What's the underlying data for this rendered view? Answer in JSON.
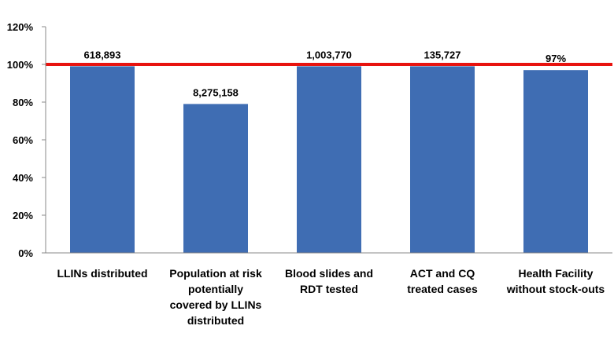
{
  "chart_data": {
    "type": "bar",
    "categories": [
      [
        "LLINs distributed"
      ],
      [
        "Population at risk",
        "potentially",
        "covered by LLINs",
        "distributed"
      ],
      [
        "Blood slides and",
        "RDT tested"
      ],
      [
        "ACT and CQ",
        "treated cases"
      ],
      [
        "Health Facility",
        "without stock-outs"
      ]
    ],
    "values": [
      99,
      79,
      99,
      99,
      97
    ],
    "data_labels": [
      "618,893",
      "8,275,158",
      "1,003,770",
      "135,727",
      "97%"
    ],
    "ylim": [
      0,
      120
    ],
    "yticks": [
      "0%",
      "20%",
      "40%",
      "60%",
      "80%",
      "100%",
      "120%"
    ],
    "target_line_value": 100,
    "colors": {
      "bar": "#3f6db3",
      "target": "#e8130f",
      "axis": "#888888"
    },
    "title": "",
    "xlabel": "",
    "ylabel": "",
    "grid": false,
    "legend": "none"
  }
}
